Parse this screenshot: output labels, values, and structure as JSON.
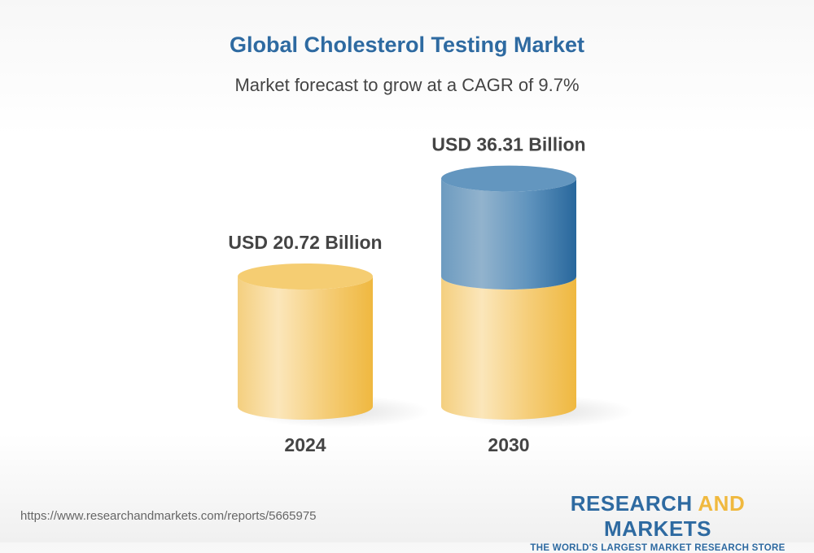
{
  "chart_data": {
    "type": "bar",
    "style": "3d-cylinder",
    "title": "Global Cholesterol Testing Market",
    "subtitle": "Market forecast to grow at a CAGR of 9.7%",
    "categories": [
      "2024",
      "2030"
    ],
    "values": [
      20.72,
      36.31
    ],
    "data_labels": [
      "USD 20.72 Billion",
      "USD 36.31 Billion"
    ],
    "unit": "USD Billion",
    "colors": {
      "base": "#f3c45a",
      "growth": "#2e6aa1"
    }
  },
  "footer": {
    "url": "https://www.researchandmarkets.com/reports/5665975",
    "logo": {
      "part1": "RESEARCH ",
      "part2": "AND",
      "part3": " MARKETS",
      "tagline": "THE WORLD'S LARGEST MARKET RESEARCH STORE"
    }
  }
}
